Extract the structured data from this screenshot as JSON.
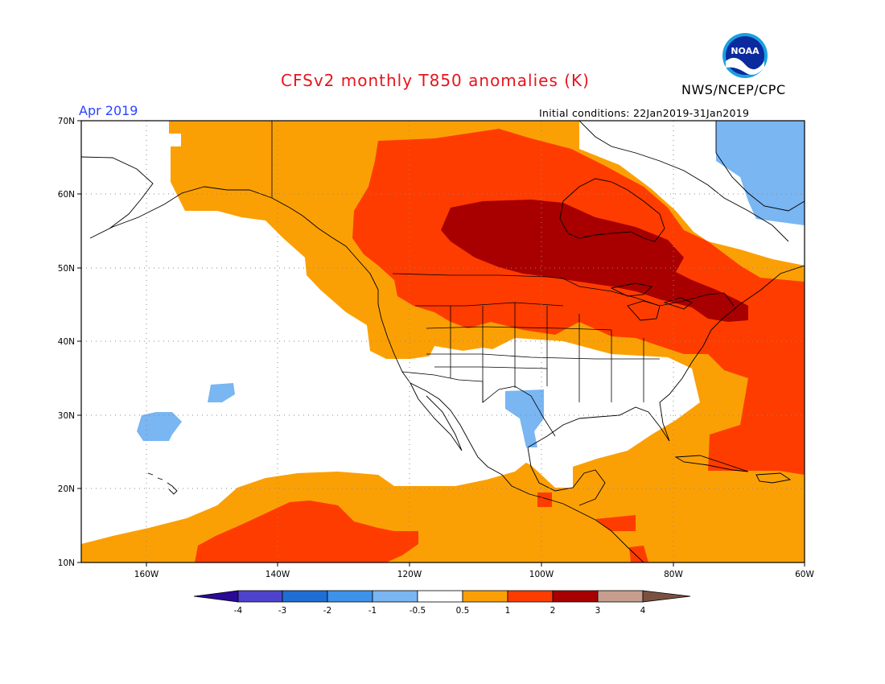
{
  "header": {
    "title": "CFSv2 monthly T850 anomalies (K)",
    "agency": "NWS/NCEP/CPC",
    "valid_month": "Apr 2019",
    "initial_conditions": "Initial conditions: 22Jan2019-31Jan2019",
    "logo_text": "NOAA"
  },
  "axes": {
    "lat_labels": [
      "70N",
      "60N",
      "50N",
      "40N",
      "30N",
      "20N",
      "10N"
    ],
    "lon_labels": [
      "160W",
      "140W",
      "120W",
      "100W",
      "80W",
      "60W"
    ]
  },
  "colorbar": {
    "colors": [
      "#2a0a96",
      "#4d43cc",
      "#1f6ed4",
      "#3d92ea",
      "#79b6f2",
      "#ffffff",
      "#fba004",
      "#ff3c00",
      "#a80000",
      "#c79e8e",
      "#7a5040"
    ],
    "tick_labels": [
      "-4",
      "-3",
      "-2",
      "-1",
      "-0.5",
      "0.5",
      "1",
      "2",
      "3",
      "4"
    ]
  },
  "legend_colors": {
    "neg_light": "#79b6f2",
    "pos_1": "#fba004",
    "pos_2": "#ff3c00",
    "pos_3": "#a80000"
  }
}
